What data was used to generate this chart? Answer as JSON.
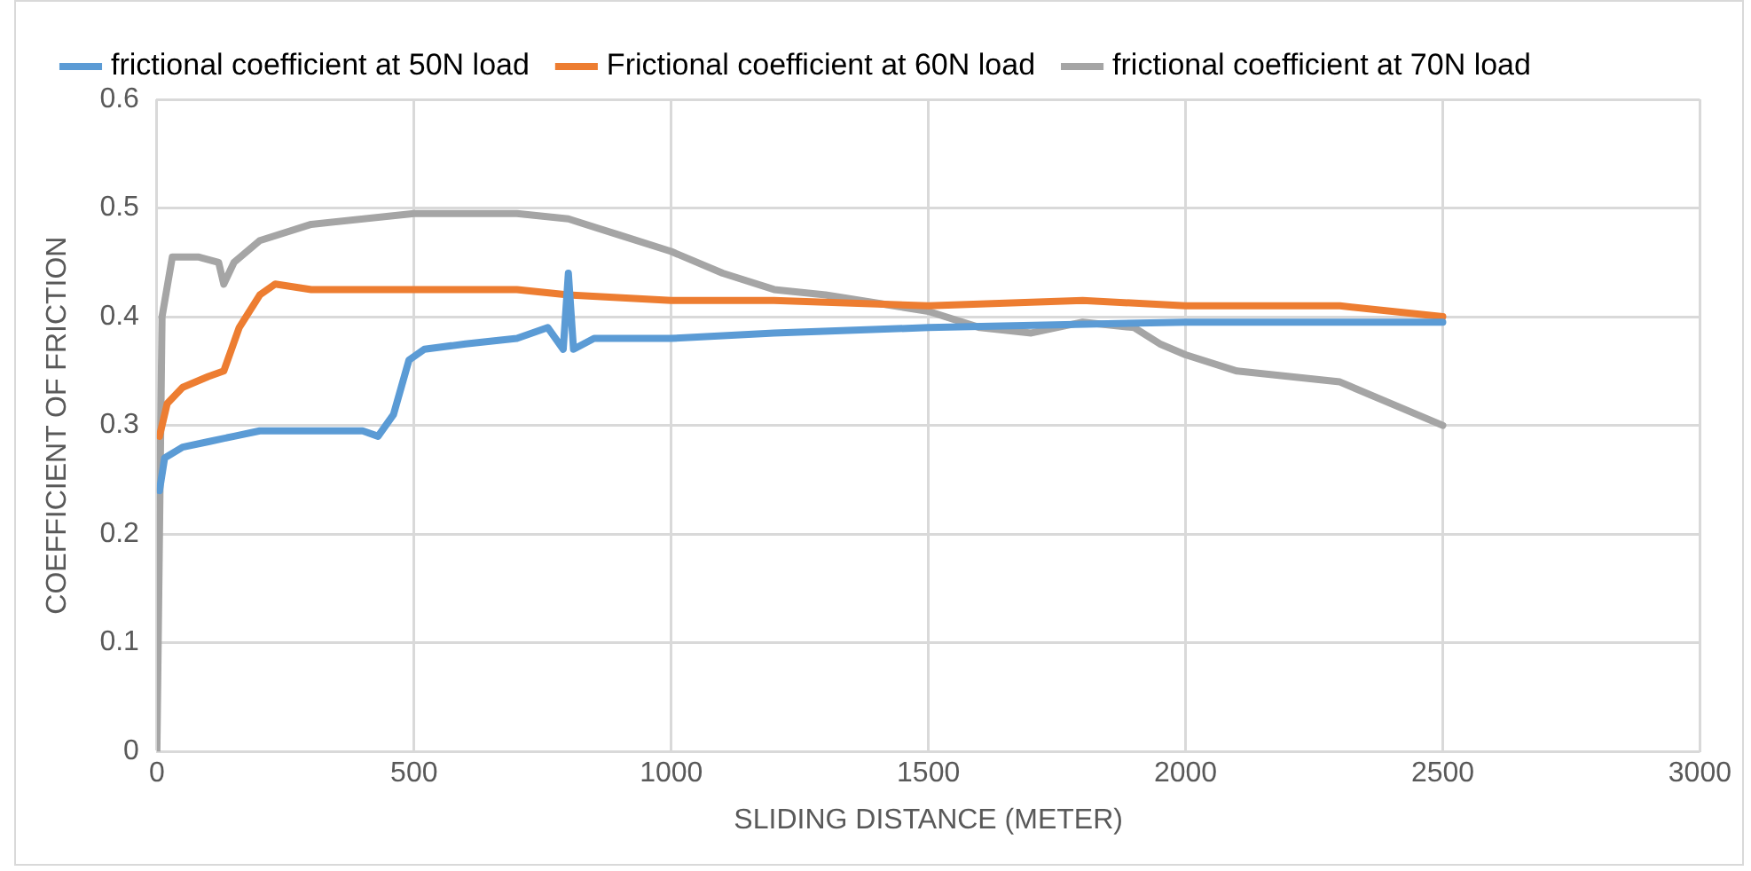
{
  "chart_data": {
    "type": "line",
    "xlabel": "SLIDING DISTANCE (METER)",
    "ylabel": "COEFFICIENT OF FRICTION",
    "xlim": [
      0,
      3000
    ],
    "xticks": [
      0,
      500,
      1000,
      1500,
      2000,
      2500,
      3000
    ],
    "ylim": [
      0,
      0.6
    ],
    "yticks": [
      0,
      0.1,
      0.2,
      0.3,
      0.4,
      0.5,
      0.6
    ],
    "grid": true,
    "legend": "top",
    "marker": "none",
    "line_style": "solid",
    "series": [
      {
        "name": "frictional coefficient at 50N load",
        "color": "#5b9bd5",
        "x": [
          5,
          15,
          50,
          100,
          150,
          200,
          300,
          400,
          430,
          460,
          490,
          520,
          600,
          700,
          760,
          790,
          800,
          810,
          850,
          1000,
          1200,
          1500,
          2000,
          2500
        ],
        "values": [
          0.24,
          0.27,
          0.28,
          0.285,
          0.29,
          0.295,
          0.295,
          0.295,
          0.29,
          0.31,
          0.36,
          0.37,
          0.375,
          0.38,
          0.39,
          0.37,
          0.44,
          0.37,
          0.38,
          0.38,
          0.385,
          0.39,
          0.395,
          0.395
        ]
      },
      {
        "name": "Frictional coefficient at 60N load",
        "color": "#ed7d31",
        "x": [
          5,
          20,
          50,
          100,
          130,
          160,
          200,
          230,
          300,
          500,
          700,
          800,
          1000,
          1200,
          1500,
          1800,
          2000,
          2300,
          2500
        ],
        "values": [
          0.29,
          0.32,
          0.335,
          0.345,
          0.35,
          0.39,
          0.42,
          0.43,
          0.425,
          0.425,
          0.425,
          0.42,
          0.415,
          0.415,
          0.41,
          0.415,
          0.41,
          0.41,
          0.4
        ]
      },
      {
        "name": "frictional coefficient at 70N load",
        "color": "#a5a5a5",
        "x": [
          0,
          10,
          30,
          80,
          120,
          130,
          150,
          200,
          300,
          500,
          700,
          800,
          900,
          1000,
          1100,
          1200,
          1300,
          1500,
          1600,
          1700,
          1800,
          1900,
          1950,
          2000,
          2100,
          2300,
          2500
        ],
        "values": [
          0,
          0.4,
          0.455,
          0.455,
          0.45,
          0.43,
          0.45,
          0.47,
          0.485,
          0.495,
          0.495,
          0.49,
          0.475,
          0.46,
          0.44,
          0.425,
          0.42,
          0.405,
          0.39,
          0.385,
          0.395,
          0.39,
          0.375,
          0.365,
          0.35,
          0.34,
          0.3
        ]
      }
    ]
  }
}
